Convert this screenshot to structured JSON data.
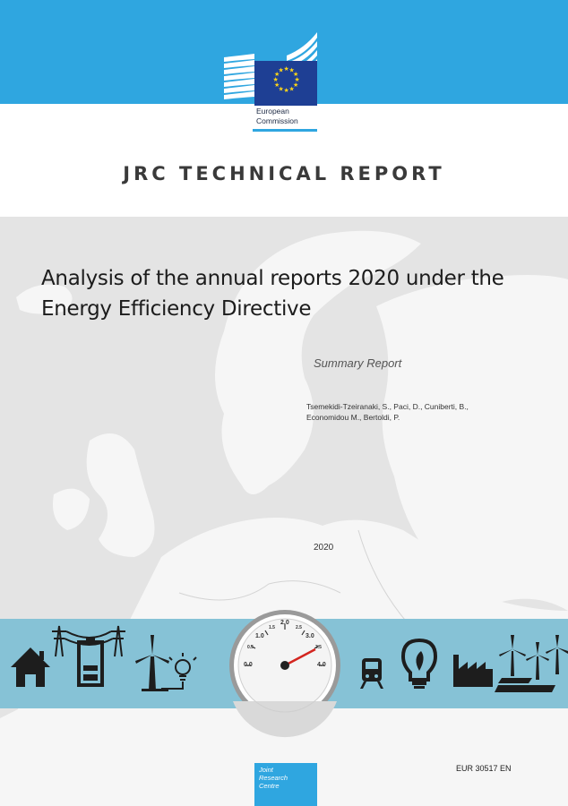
{
  "header": {
    "org_name": "European\nCommission",
    "brand_color": "#2fa6e0"
  },
  "report_type": "JRC TECHNICAL REPORT",
  "title": "Analysis of the annual reports 2020 under the Energy Efficiency Directive",
  "subtitle": "Summary Report",
  "authors": "Tsemekidi-Tzeiranaki, S., Paci, D., Cuniberti, B.,\nEconomidou M., Bertoldi, P.",
  "year": "2020",
  "gauge": {
    "ticks": [
      "0.0",
      "0.5",
      "1.0",
      "1.5",
      "2.0",
      "2.5",
      "3.0",
      "3.5",
      "4.0"
    ]
  },
  "icons": [
    "house-icon",
    "power-pylon-icon",
    "battery-icon",
    "wind-turbine-icon",
    "light-bulb-icon",
    "gauge-icon",
    "train-icon",
    "eco-bulb-icon",
    "factory-icon",
    "wind-farm-icon",
    "solar-panel-icon"
  ],
  "footer": {
    "jrc_label": "Joint\nResearch\nCentre",
    "report_number": "EUR 30517 EN"
  }
}
